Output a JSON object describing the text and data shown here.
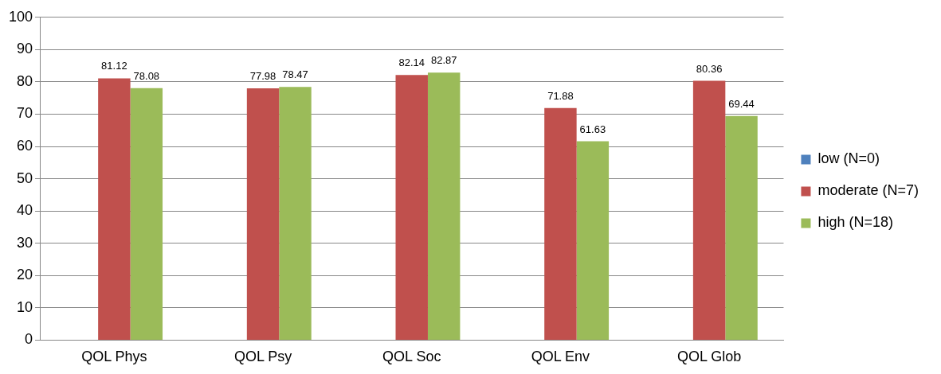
{
  "chart_data": {
    "type": "bar",
    "categories": [
      "QOL Phys",
      "QOL Psy",
      "QOL Soc",
      "QOL Env",
      "QOL Glob"
    ],
    "series": [
      {
        "name": "low (N=0)",
        "color": "#4f81bd",
        "values": [
          null,
          null,
          null,
          null,
          null
        ]
      },
      {
        "name": "moderate (N=7)",
        "color": "#c0504d",
        "values": [
          81.12,
          77.98,
          82.14,
          71.88,
          80.36
        ]
      },
      {
        "name": "high (N=18)",
        "color": "#9bbb59",
        "values": [
          78.08,
          78.47,
          82.87,
          61.63,
          69.44
        ]
      }
    ],
    "ylim": [
      0,
      100
    ],
    "yticks": [
      0,
      10,
      20,
      30,
      40,
      50,
      60,
      70,
      80,
      90,
      100
    ],
    "grid": "y",
    "legend": "right",
    "data_labels": true
  }
}
